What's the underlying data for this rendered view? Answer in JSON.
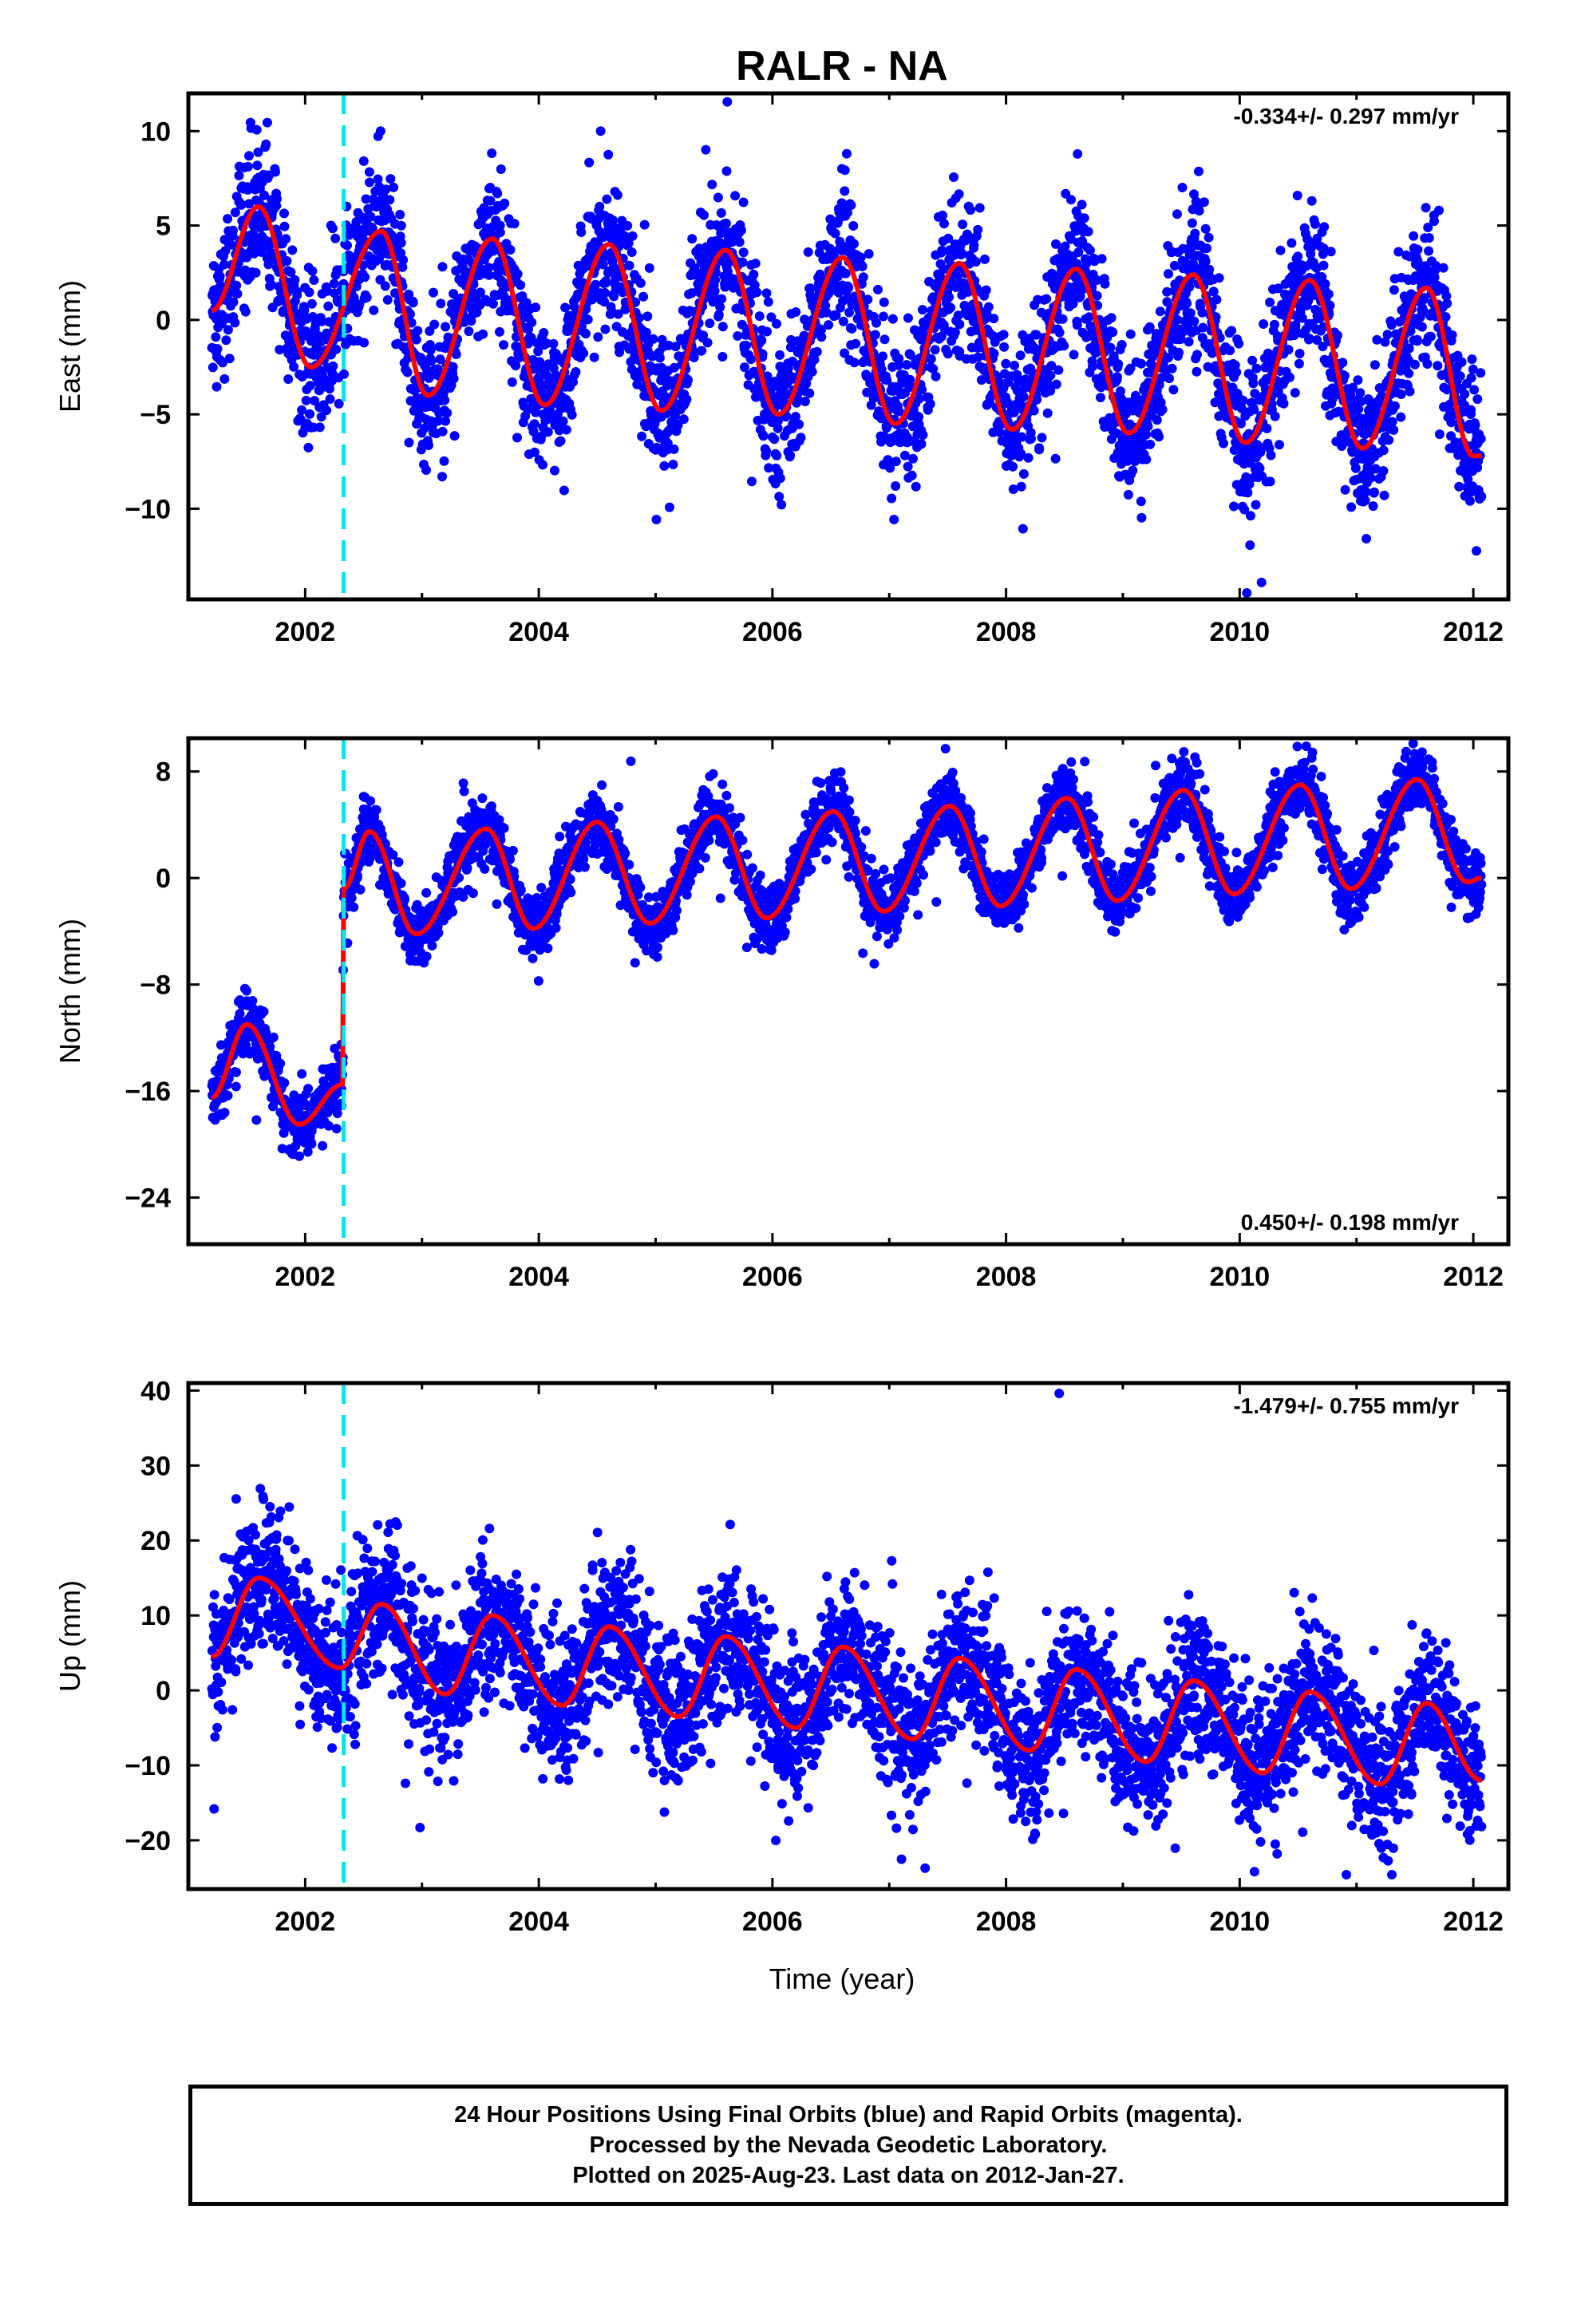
{
  "title": "RALR - NA",
  "xlabel": "Time (year)",
  "footer": {
    "line1": "24 Hour Positions Using Final Orbits (blue) and Rapid Orbits (magenta).",
    "line2": "Processed by the Nevada Geodetic Laboratory.",
    "line3": "Plotted on 2025-Aug-23. Last data on 2012-Jan-27."
  },
  "colors": {
    "points": "#0000ff",
    "fit": "#ff0000",
    "offset_line": "#00e5ee",
    "frame": "#000000"
  },
  "chart_data": [
    {
      "type": "scatter",
      "panel": "east",
      "ylabel": "East (mm)",
      "rate_label": "-0.334+/- 0.297 mm/yr",
      "rate_position": "top-right",
      "xlim": [
        2001.0,
        2012.3
      ],
      "ylim": [
        -14.8,
        12.0
      ],
      "xticks": [
        2002,
        2004,
        2006,
        2008,
        2010,
        2012
      ],
      "yticks": [
        10,
        5,
        0,
        -5,
        -10
      ],
      "offset_epoch": 2002.33,
      "data_start": 2001.2,
      "data_end": 2012.07,
      "fit_curve": {
        "x": [
          2001.2,
          2001.6,
          2002.05,
          2002.65,
          2003.05,
          2003.6,
          2004.05,
          2004.6,
          2005.05,
          2005.6,
          2006.05,
          2006.6,
          2007.05,
          2007.6,
          2008.05,
          2008.6,
          2009.05,
          2009.6,
          2010.05,
          2010.6,
          2011.05,
          2011.6,
          2012.0
        ],
        "y": [
          0.5,
          6.0,
          -2.5,
          4.7,
          -4.0,
          4.3,
          -4.5,
          4.0,
          -4.8,
          3.7,
          -5.0,
          3.3,
          -5.5,
          3.0,
          -5.8,
          2.7,
          -6.0,
          2.4,
          -6.5,
          2.1,
          -6.8,
          1.7,
          -7.2
        ]
      },
      "scatter_sigma": 1.9,
      "points_per_year": 360
    },
    {
      "type": "scatter",
      "panel": "north",
      "ylabel": "North (mm)",
      "rate_label": "0.450+/- 0.198 mm/yr",
      "rate_position": "bottom-right",
      "xlim": [
        2001.0,
        2012.3
      ],
      "ylim": [
        -27.5,
        10.5
      ],
      "xticks": [
        2002,
        2004,
        2006,
        2008,
        2010,
        2012
      ],
      "yticks": [
        8,
        0,
        -8,
        -16,
        -24
      ],
      "offset_epoch": 2002.33,
      "data_start": 2001.2,
      "data_end": 2012.07,
      "fit_curve": {
        "x": [
          2001.2,
          2001.5,
          2001.95,
          2002.32,
          2002.33,
          2002.55,
          2002.95,
          2003.55,
          2003.95,
          2004.5,
          2004.95,
          2005.52,
          2005.95,
          2006.52,
          2006.95,
          2007.52,
          2007.95,
          2008.52,
          2008.95,
          2009.52,
          2009.95,
          2010.52,
          2010.95,
          2011.52,
          2011.95,
          2012.07
        ],
        "y": [
          -16.5,
          -11.0,
          -18.5,
          -15.5,
          -0.8,
          3.5,
          -4.2,
          3.7,
          -3.8,
          4.2,
          -3.4,
          4.6,
          -3.0,
          5.0,
          -2.5,
          5.4,
          -2.1,
          6.0,
          -1.7,
          6.6,
          -1.2,
          7.0,
          -0.8,
          7.4,
          -0.3,
          0.0
        ]
      },
      "scatter_sigma": 1.2,
      "points_per_year": 360
    },
    {
      "type": "scatter",
      "panel": "up",
      "ylabel": "Up (mm)",
      "rate_label": "-1.479+/- 0.755 mm/yr",
      "rate_position": "top-right",
      "xlim": [
        2001.0,
        2012.3
      ],
      "ylim": [
        -26.5,
        41.0
      ],
      "xticks": [
        2002,
        2004,
        2006,
        2008,
        2010,
        2012
      ],
      "yticks": [
        40,
        30,
        20,
        10,
        0,
        -10,
        -20
      ],
      "offset_epoch": 2002.33,
      "data_start": 2001.2,
      "data_end": 2012.07,
      "fit_curve": {
        "x": [
          2001.2,
          2001.6,
          2002.3,
          2002.65,
          2003.2,
          2003.6,
          2004.2,
          2004.6,
          2005.2,
          2005.6,
          2006.2,
          2006.6,
          2007.2,
          2007.6,
          2008.2,
          2008.6,
          2009.2,
          2009.6,
          2010.2,
          2010.6,
          2011.2,
          2011.6,
          2012.07
        ],
        "y": [
          4.5,
          15.0,
          3.0,
          11.5,
          -0.5,
          10.0,
          -2.0,
          8.5,
          -3.5,
          7.2,
          -5.0,
          5.8,
          -6.5,
          4.3,
          -8.0,
          2.8,
          -9.5,
          1.3,
          -11.0,
          -0.2,
          -12.5,
          -1.7,
          -12.0
        ]
      },
      "scatter_sigma": 4.8,
      "points_per_year": 360
    }
  ]
}
